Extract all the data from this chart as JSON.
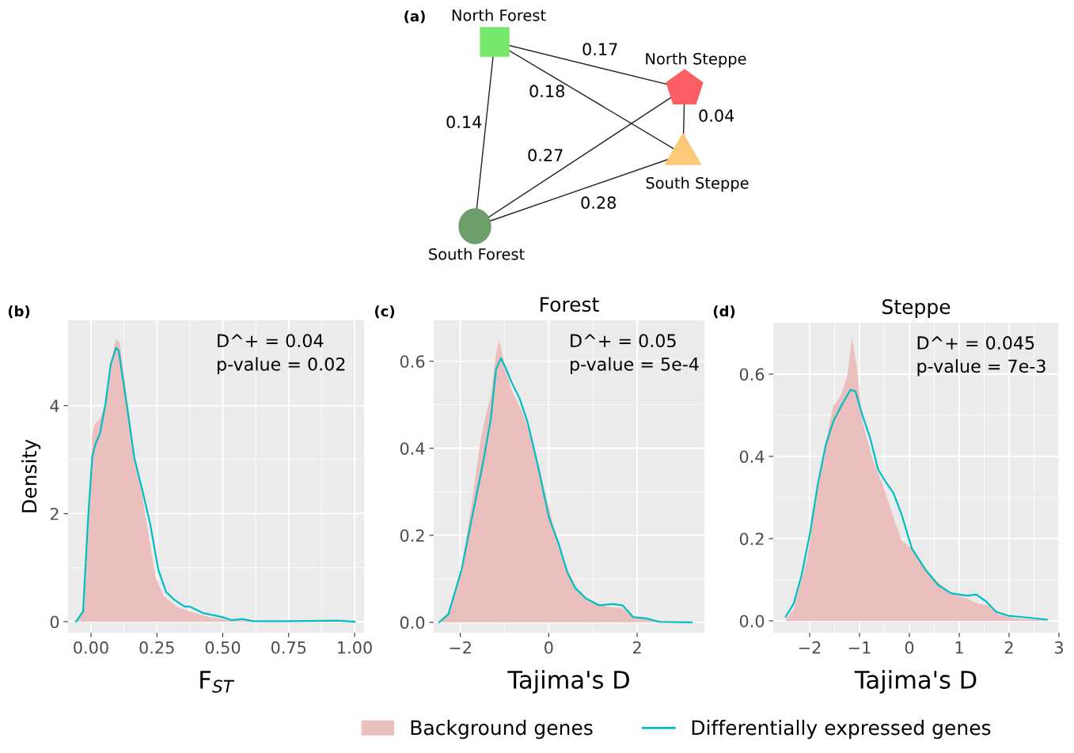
{
  "chart_data": [
    {
      "type": "other",
      "title": "(a)",
      "categories": [
        "North Forest",
        "North Steppe",
        "South Steppe",
        "South Forest"
      ],
      "colors": [
        "#77e86b",
        "#fa5d62",
        "#fdc878",
        "#6b9e6b"
      ],
      "annotations": [
        "0.17",
        "0.18",
        "0.04",
        "0.14",
        "0.27",
        "0.28"
      ]
    },
    {
      "type": "area",
      "title": "(b)",
      "xlabel": "F$_{ST}$",
      "ylabel": "Density",
      "xlim": [
        -0.087,
        1.036
      ],
      "ylim": [
        -0.205,
        5.58
      ],
      "xticks": [
        {
          "value": 0,
          "label": "0.00"
        },
        0.25,
        {
          "value": 0.5,
          "label": "0.50"
        },
        0.75,
        {
          "value": 1,
          "label": "1.00"
        }
      ],
      "yticks": [
        0,
        2,
        4
      ],
      "grid": true,
      "legend": "bottom",
      "annotations": [
        "D^+ = 0.04",
        "p-value = 0.02"
      ],
      "series": [
        {
          "name": "Background genes",
          "type": "area",
          "color": "#ebbfbd",
          "x": [
            -0.057,
            -0.025,
            -0.01,
            0.005,
            0.015,
            0.035,
            0.055,
            0.075,
            0.095,
            0.11,
            0.135,
            0.165,
            0.195,
            0.225,
            0.245,
            0.275,
            0.325,
            0.375,
            0.445,
            0.525,
            0.645,
            1.0
          ],
          "values": [
            0,
            0.28,
            1.75,
            3.46,
            3.65,
            3.77,
            4.04,
            4.77,
            5.24,
            5.16,
            4.19,
            3.11,
            2.33,
            1.41,
            0.82,
            0.48,
            0.28,
            0.19,
            0.09,
            0.03,
            0.01,
            0
          ]
        },
        {
          "name": "Differentially expressed genes",
          "type": "line",
          "color": "#00bfc4",
          "x": [
            -0.057,
            -0.03,
            -0.01,
            0.005,
            0.015,
            0.035,
            0.055,
            0.075,
            0.095,
            0.105,
            0.135,
            0.165,
            0.195,
            0.225,
            0.255,
            0.285,
            0.315,
            0.355,
            0.375,
            0.425,
            0.495,
            0.535,
            0.575,
            0.615,
            0.745,
            0.935,
            1.0
          ],
          "values": [
            0,
            0.19,
            2.0,
            3.06,
            3.26,
            3.5,
            4.04,
            4.77,
            5.07,
            5.02,
            4.04,
            3.02,
            2.43,
            1.8,
            0.97,
            0.55,
            0.41,
            0.28,
            0.28,
            0.16,
            0.09,
            0.03,
            0.05,
            0.01,
            0.01,
            0.02,
            0
          ]
        }
      ]
    },
    {
      "type": "area",
      "title": "(c)",
      "subtitle": "Forest",
      "xlabel": "Tajima's D",
      "xlim": [
        -2.6,
        3.52
      ],
      "ylim": [
        -0.024,
        0.694
      ],
      "xticks": [
        {
          "value": -2,
          "label": "−2"
        },
        0,
        2
      ],
      "yticks": [
        {
          "value": 0,
          "label": "0.0"
        },
        0.2,
        0.4,
        0.6
      ],
      "grid": true,
      "annotations": [
        "D^+ = 0.05",
        "p-value = 5e-4"
      ],
      "series": [
        {
          "type": "area",
          "color": "#ebbfbd",
          "x": [
            -2.48,
            -2.27,
            -1.97,
            -1.73,
            -1.55,
            -1.43,
            -1.31,
            -1.19,
            -1.12,
            -1.04,
            -0.84,
            -0.6,
            -0.36,
            -0.12,
            0.12,
            0.36,
            0.6,
            0.96,
            1.32,
            1.67,
            1.91,
            2.33,
            3.23
          ],
          "values": [
            0,
            0.024,
            0.127,
            0.279,
            0.412,
            0.473,
            0.521,
            0.618,
            0.649,
            0.612,
            0.533,
            0.485,
            0.418,
            0.315,
            0.218,
            0.139,
            0.079,
            0.048,
            0.036,
            0.033,
            0.012,
            0.005,
            0
          ]
        },
        {
          "type": "line",
          "color": "#00bfc4",
          "x": [
            -2.48,
            -2.27,
            -1.97,
            -1.73,
            -1.49,
            -1.31,
            -1.19,
            -1.08,
            -0.96,
            -0.84,
            -0.66,
            -0.48,
            -0.24,
            0,
            0.24,
            0.42,
            0.6,
            0.84,
            1.14,
            1.43,
            1.67,
            1.91,
            2.21,
            2.51,
            3.23
          ],
          "values": [
            0,
            0.018,
            0.121,
            0.243,
            0.364,
            0.467,
            0.582,
            0.607,
            0.582,
            0.552,
            0.515,
            0.461,
            0.358,
            0.243,
            0.176,
            0.115,
            0.079,
            0.055,
            0.039,
            0.042,
            0.039,
            0.012,
            0.009,
            0.001,
            0
          ]
        }
      ]
    },
    {
      "type": "area",
      "title": "(d)",
      "subtitle": "Steppe",
      "xlabel": "Tajima's D",
      "xlim": [
        -2.73,
        3.0
      ],
      "ylim": [
        -0.029,
        0.725
      ],
      "xticks": [
        {
          "value": -2,
          "label": "−2"
        },
        {
          "value": -1,
          "label": "−1"
        },
        0,
        1,
        2,
        3
      ],
      "yticks": [
        {
          "value": 0,
          "label": "0.0"
        },
        0.2,
        0.4,
        0.6
      ],
      "grid": true,
      "annotations": [
        "D^+ = 0.045",
        "p-value = 7e-3"
      ],
      "series": [
        {
          "type": "area",
          "color": "#ebbfbd",
          "x": [
            -2.48,
            -2.32,
            -2.05,
            -1.84,
            -1.68,
            -1.53,
            -1.37,
            -1.24,
            -1.15,
            -1.05,
            -0.95,
            -0.74,
            -0.53,
            -0.32,
            -0.16,
            0.05,
            0.32,
            0.58,
            0.84,
            1.16,
            1.37,
            1.58,
            1.79,
            2.11,
            2.76
          ],
          "values": [
            0.003,
            0.029,
            0.151,
            0.324,
            0.433,
            0.522,
            0.548,
            0.599,
            0.689,
            0.612,
            0.49,
            0.394,
            0.33,
            0.253,
            0.196,
            0.176,
            0.125,
            0.093,
            0.067,
            0.054,
            0.042,
            0.038,
            0.016,
            0.006,
            0.002
          ]
        },
        {
          "type": "line",
          "color": "#00bfc4",
          "x": [
            -2.48,
            -2.32,
            -2.16,
            -1.99,
            -1.84,
            -1.68,
            -1.53,
            -1.37,
            -1.18,
            -1.08,
            -0.95,
            -0.79,
            -0.63,
            -0.47,
            -0.32,
            -0.16,
            0.05,
            0.32,
            0.58,
            0.84,
            1.16,
            1.34,
            1.53,
            1.74,
            2.0,
            2.37,
            2.76
          ],
          "values": [
            0.01,
            0.042,
            0.112,
            0.215,
            0.33,
            0.426,
            0.484,
            0.522,
            0.562,
            0.558,
            0.503,
            0.446,
            0.369,
            0.337,
            0.311,
            0.26,
            0.176,
            0.125,
            0.087,
            0.067,
            0.061,
            0.064,
            0.048,
            0.022,
            0.012,
            0.008,
            0.003
          ]
        }
      ]
    }
  ]
}
